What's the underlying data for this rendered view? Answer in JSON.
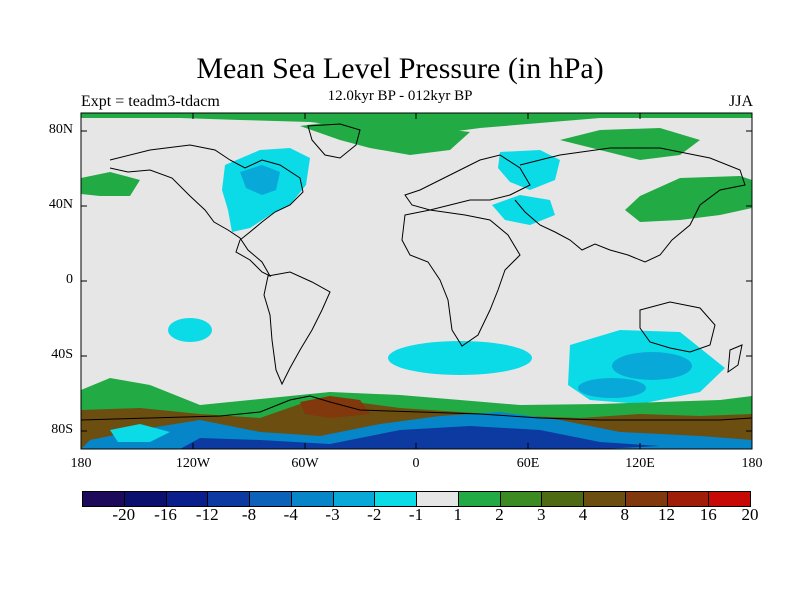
{
  "title": "Mean Sea Level Pressure (in hPa)",
  "subtitle": "12.0kyr BP - 012kyr BP",
  "left_label": "Expt = teadm3-tdacm",
  "right_label": "JJA",
  "lat_ticks": [
    "80N",
    "40N",
    "0",
    "40S",
    "80S"
  ],
  "lon_ticks": [
    "180",
    "120W",
    "60W",
    "0",
    "60E",
    "120E",
    "180"
  ],
  "colorbar": {
    "labels": [
      "-20",
      "-16",
      "-12",
      "-8",
      "-4",
      "-3",
      "-2",
      "-1",
      "1",
      "2",
      "3",
      "4",
      "8",
      "12",
      "16",
      "20"
    ],
    "colors": [
      "#1e0a5a",
      "#0b0f6e",
      "#0a1f8c",
      "#0c3aa0",
      "#0b62b8",
      "#0686c8",
      "#08a9d8",
      "#0bdbe6",
      "#e6e6e6",
      "#22aa44",
      "#3c8a22",
      "#4e6b14",
      "#6b4e10",
      "#80380c",
      "#a01e08",
      "#c80a06"
    ]
  },
  "map_colors": {
    "land_background": "#e6e6e6",
    "coastline": "#000000"
  }
}
